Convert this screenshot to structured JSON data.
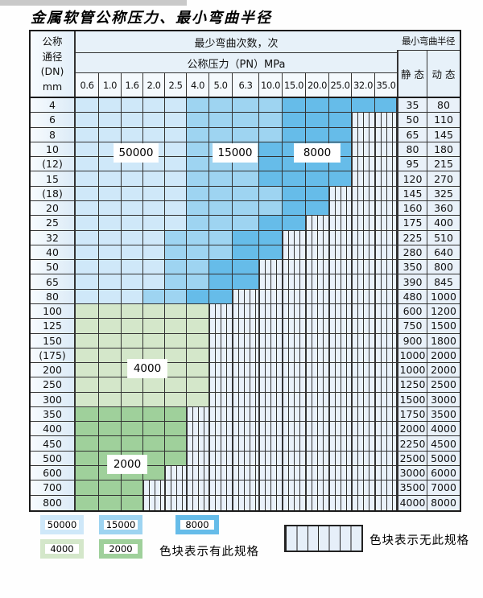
{
  "title": "金属软管公称压力、最小弯曲半径",
  "table": {
    "header": {
      "dn_lines": [
        "公称",
        "通径",
        "(DN)",
        "mm"
      ],
      "bend_times": "最少弯曲次数，次",
      "pressure_unit": "公称压力（PN）MPa",
      "pressures": [
        "0.6",
        "1.0",
        "1.6",
        "2.0",
        "2.5",
        "4.0",
        "5.0",
        "6.3",
        "10.0",
        "15.0",
        "20.0",
        "25.0",
        "32.0",
        "35.0"
      ],
      "radius": "最小弯曲半径",
      "static_label": "静 态",
      "dynamic_label": "动 态"
    },
    "cell_codes": {
      "L": "50000次区(浅蓝)",
      "M": "15000次区(中蓝)",
      "D": "8000次区(深蓝)",
      "G": "4000次区(浅绿)",
      "E": "2000次区(绿)",
      "S": "无此规格(条纹)"
    },
    "rows": [
      {
        "dn": "4",
        "cells": "LLLLLMMMMDDDDD",
        "static": "35",
        "dynamic": "80"
      },
      {
        "dn": "6",
        "cells": "LLLLLMMMMDDDSS",
        "static": "50",
        "dynamic": "110"
      },
      {
        "dn": "8",
        "cells": "LLLLLMMMMDDDSS",
        "static": "65",
        "dynamic": "145"
      },
      {
        "dn": "10",
        "cells": "LLLLLMMMDDDDSS",
        "static": "80",
        "dynamic": "180"
      },
      {
        "dn": "(12)",
        "cells": "LLLLLMMMDDDDSS",
        "static": "95",
        "dynamic": "215"
      },
      {
        "dn": "15",
        "cells": "LLLLLMMMDDDDSS",
        "static": "120",
        "dynamic": "270"
      },
      {
        "dn": "(18)",
        "cells": "LLLLLMMMMDDSSS",
        "static": "145",
        "dynamic": "325"
      },
      {
        "dn": "20",
        "cells": "LLLLLMMMMDDSSS",
        "static": "160",
        "dynamic": "360"
      },
      {
        "dn": "25",
        "cells": "LLLLLMMMDDSSSS",
        "static": "175",
        "dynamic": "400"
      },
      {
        "dn": "32",
        "cells": "LLLLMMMDDSSSSS",
        "static": "225",
        "dynamic": "510"
      },
      {
        "dn": "40",
        "cells": "LLLLMMMDDSSSSS",
        "static": "280",
        "dynamic": "640"
      },
      {
        "dn": "50",
        "cells": "LLLLMMDDSSSSSS",
        "static": "350",
        "dynamic": "800"
      },
      {
        "dn": "65",
        "cells": "LLLLMMDDSSSSSS",
        "static": "390",
        "dynamic": "845"
      },
      {
        "dn": "80",
        "cells": "LLLMMDDSSSSSSS",
        "static": "480",
        "dynamic": "1000"
      },
      {
        "dn": "100",
        "cells": "GGGGGGSSSSSSSS",
        "static": "600",
        "dynamic": "1200"
      },
      {
        "dn": "125",
        "cells": "GGGGGGSSSSSSSS",
        "static": "750",
        "dynamic": "1500"
      },
      {
        "dn": "150",
        "cells": "GGGGGGSSSSSSSS",
        "static": "900",
        "dynamic": "1800"
      },
      {
        "dn": "(175)",
        "cells": "GGGGGGSSSSSSSS",
        "static": "1000",
        "dynamic": "2000"
      },
      {
        "dn": "200",
        "cells": "GGGGGGSSSSSSSS",
        "static": "1000",
        "dynamic": "2000"
      },
      {
        "dn": "250",
        "cells": "GGGGGGSSSSSSSS",
        "static": "1250",
        "dynamic": "2500"
      },
      {
        "dn": "300",
        "cells": "GGGGGGSSSSSSSS",
        "static": "1500",
        "dynamic": "3000"
      },
      {
        "dn": "350",
        "cells": "EEEEESSSSSSSSS",
        "static": "1750",
        "dynamic": "3500"
      },
      {
        "dn": "400",
        "cells": "EEEEESSSSSSSSS",
        "static": "2000",
        "dynamic": "4000"
      },
      {
        "dn": "450",
        "cells": "EEEEESSSSSSSSS",
        "static": "2250",
        "dynamic": "4500"
      },
      {
        "dn": "500",
        "cells": "EEEEESSSSSSSSS",
        "static": "2500",
        "dynamic": "5000"
      },
      {
        "dn": "600",
        "cells": "EEEESSSSSSSSSS",
        "static": "3000",
        "dynamic": "6000"
      },
      {
        "dn": "700",
        "cells": "EEESSSSSSSSSSS",
        "static": "3500",
        "dynamic": "7000"
      },
      {
        "dn": "800",
        "cells": "EEESSSSSSSSSSS",
        "static": "4000",
        "dynamic": "8000"
      }
    ],
    "overlays": {
      "l50000": "50000",
      "l15000": "15000",
      "l8000": "8000",
      "l4000": "4000",
      "l2000": "2000"
    }
  },
  "legend": {
    "l50000": "50000",
    "l15000": "15000",
    "l8000": "8000",
    "l4000": "4000",
    "l2000": "2000",
    "has_spec": "色块表示有此规格",
    "no_spec": "色块表示无此规格"
  },
  "colors": {
    "light_blue": "#cfe8f9",
    "medium_blue": "#9ed4f1",
    "dark_blue": "#66bce9",
    "light_green": "#d4e7ca",
    "medium_green": "#9fd09b",
    "stripe_bg": "#e9f1fa",
    "stripe_line": "#333333",
    "header_bg": "#e7f1f9",
    "pcell_bg": "#f4f9fd",
    "valcell_bg": "#e9f1f9"
  }
}
